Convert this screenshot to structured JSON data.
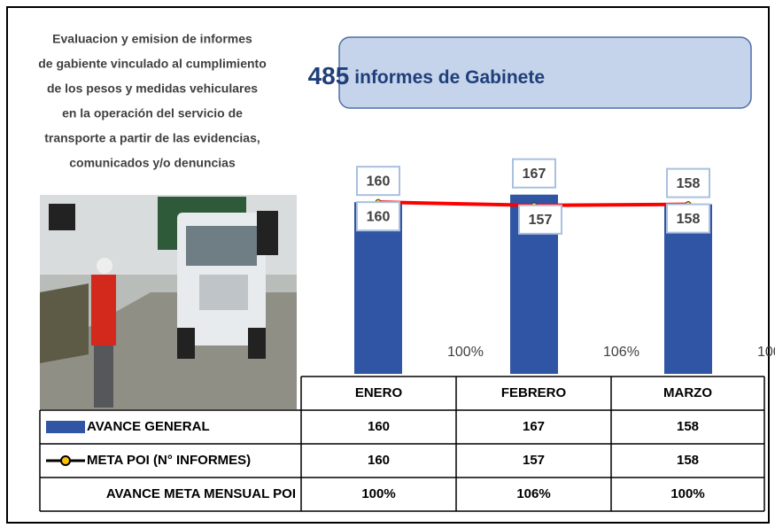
{
  "chart_data": {
    "type": "bar_line_table",
    "description": [
      "Evaluacion y emision de informes",
      "de gabiente vinculado al cumplimiento",
      "de los pesos  y medidas vehiculares",
      "en la operación  del servicio de",
      "transporte a partir de las evidencias,",
      "comunicados y/o denuncias"
    ],
    "total": {
      "number": "485",
      "text": "informes de Gabinete"
    },
    "categories": [
      "ENERO",
      "FEBRERO",
      "MARZO"
    ],
    "ylim": [
      0,
      175
    ],
    "series": [
      {
        "name": "AVANCE GENERAL",
        "color": "#2f55a4",
        "values": [
          160,
          167,
          158
        ]
      },
      {
        "name": "META POI (N° INFORMES)",
        "color": "#ff0000",
        "marker_color": "#ffc000",
        "values": [
          160,
          157,
          158
        ]
      },
      {
        "name": "AVANCE META MENSUAL POI",
        "values": [
          100,
          106,
          100
        ],
        "value_labels": [
          "100%",
          "106%",
          "100%"
        ]
      }
    ]
  }
}
